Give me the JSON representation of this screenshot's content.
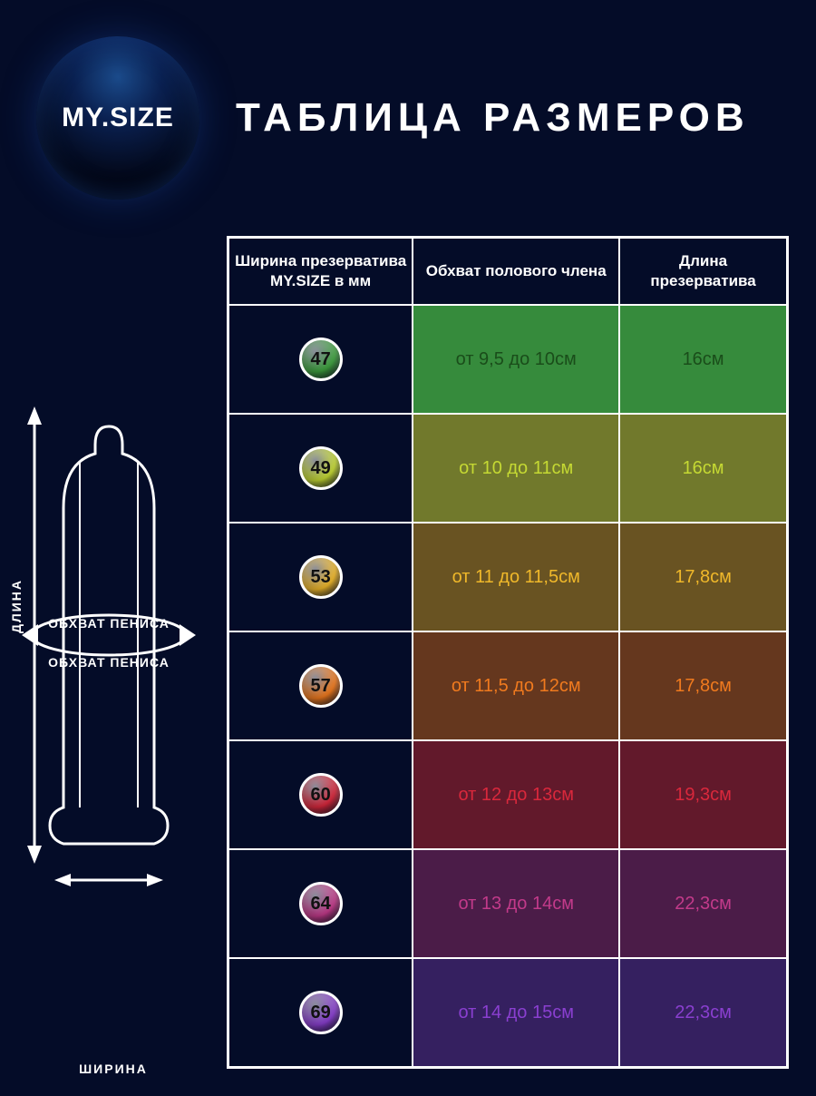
{
  "brand": "MY.SIZE",
  "title": "ТАБЛИЦА РАЗМЕРОВ",
  "background_color": "#040c28",
  "border_color": "#ffffff",
  "columns": {
    "col1": "Ширина презерватива MY.SIZE в мм",
    "col2": "Обхват полового члена",
    "col3": "Длина презерватива"
  },
  "diagram": {
    "length_label": "ДЛИНА",
    "width_label": "ШИРИНА",
    "girth_label": "ОБХВАТ ПЕНИСА"
  },
  "rows": [
    {
      "size": "47",
      "badge_color": "#3fa23f",
      "row_color": "#3fa23f",
      "row_opacity": 0.85,
      "text_color": "#1a4d1a",
      "girth": "от 9,5 до 10см",
      "length": "16см"
    },
    {
      "size": "49",
      "badge_color": "#c5d933",
      "row_color": "#a0a82d",
      "row_opacity": 0.7,
      "text_color": "#c5d933",
      "girth": "от 10 до 11см",
      "length": "16см"
    },
    {
      "size": "53",
      "badge_color": "#f0b82a",
      "row_color": "#a07a1e",
      "row_opacity": 0.65,
      "text_color": "#f0b82a",
      "girth": "от 11 до 11,5см",
      "length": "17,8см"
    },
    {
      "size": "57",
      "badge_color": "#f07a1e",
      "row_color": "#9a4f18",
      "row_opacity": 0.65,
      "text_color": "#f07a1e",
      "girth": "от 11,5 до 12см",
      "length": "17,8см"
    },
    {
      "size": "60",
      "badge_color": "#d9283c",
      "row_color": "#8a1f2c",
      "row_opacity": 0.7,
      "text_color": "#d9283c",
      "girth": "от 12 до 13см",
      "length": "19,3см"
    },
    {
      "size": "64",
      "badge_color": "#c23a8a",
      "row_color": "#6a2355",
      "row_opacity": 0.7,
      "text_color": "#c23a8a",
      "girth": "от 13 до 14см",
      "length": "22,3см"
    },
    {
      "size": "69",
      "badge_color": "#8a3fd0",
      "row_color": "#4a2a78",
      "row_opacity": 0.7,
      "text_color": "#8a3fd0",
      "girth": "от 14 до 15см",
      "length": "22,3см"
    }
  ]
}
